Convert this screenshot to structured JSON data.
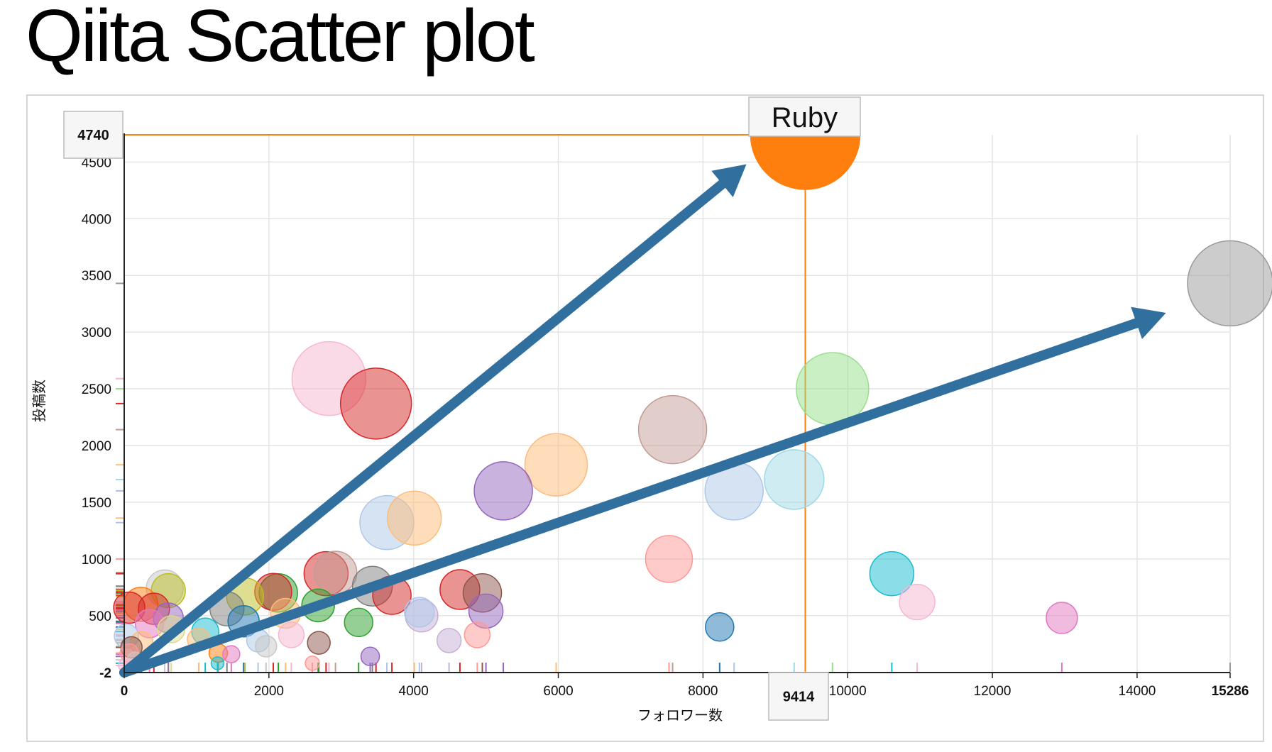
{
  "page_title": "Qiita Scatter plot",
  "chart_data": {
    "type": "scatter",
    "title": "Qiita Scatter plot",
    "xlabel": "フォロワー数",
    "ylabel": "投稿数",
    "xlim": [
      0,
      15286
    ],
    "ylim": [
      -2,
      4740
    ],
    "x_ticks": [
      "0",
      "2000",
      "4000",
      "6000",
      "8000",
      "10000",
      "12000",
      "14000",
      "15286"
    ],
    "y_ticks": [
      "-2",
      "500",
      "1000",
      "1500",
      "2000",
      "2500",
      "3000",
      "3500",
      "4000",
      "4500",
      "4740"
    ],
    "crosshair": {
      "x": 9414,
      "y": 4740,
      "x_label": "9414",
      "y_label": "4740"
    },
    "highlight_label": "Ruby",
    "grid": true,
    "points": [
      {
        "x": 9414,
        "y": 4740,
        "r": 77,
        "color": "#ff7f0e",
        "label": "Ruby"
      },
      {
        "x": 15286,
        "y": 3430,
        "r": 60,
        "color": "#999999"
      },
      {
        "x": 2830,
        "y": 2590,
        "r": 52,
        "color": "#f7b6d2"
      },
      {
        "x": 3480,
        "y": 2370,
        "r": 50,
        "color": "#d62728"
      },
      {
        "x": 9790,
        "y": 2500,
        "r": 51,
        "color": "#98df8a"
      },
      {
        "x": 7580,
        "y": 2140,
        "r": 48,
        "color": "#c49c94"
      },
      {
        "x": 5970,
        "y": 1830,
        "r": 44,
        "color": "#ffbb78"
      },
      {
        "x": 5240,
        "y": 1600,
        "r": 41,
        "color": "#9467bd"
      },
      {
        "x": 9260,
        "y": 1700,
        "r": 42,
        "color": "#9edae5"
      },
      {
        "x": 8430,
        "y": 1600,
        "r": 41,
        "color": "#aec7e8"
      },
      {
        "x": 3630,
        "y": 1320,
        "r": 38,
        "color": "#aec7e8"
      },
      {
        "x": 4010,
        "y": 1360,
        "r": 38,
        "color": "#ffbb78"
      },
      {
        "x": 7530,
        "y": 1000,
        "r": 33,
        "color": "#ff9896"
      },
      {
        "x": 10610,
        "y": 870,
        "r": 31,
        "color": "#17becf"
      },
      {
        "x": 10960,
        "y": 620,
        "r": 25,
        "color": "#f7b6d2"
      },
      {
        "x": 12960,
        "y": 480,
        "r": 22,
        "color": "#e377c2"
      },
      {
        "x": 8230,
        "y": 400,
        "r": 20,
        "color": "#1f77b4"
      },
      {
        "x": 2920,
        "y": 880,
        "r": 30,
        "color": "#c49c94"
      },
      {
        "x": 2790,
        "y": 870,
        "r": 31,
        "color": "#d62728"
      },
      {
        "x": 3430,
        "y": 760,
        "r": 28,
        "color": "#7f7f7f"
      },
      {
        "x": 3700,
        "y": 680,
        "r": 27,
        "color": "#d62728"
      },
      {
        "x": 4640,
        "y": 730,
        "r": 28,
        "color": "#d62728"
      },
      {
        "x": 4950,
        "y": 700,
        "r": 27,
        "color": "#8c564b"
      },
      {
        "x": 5000,
        "y": 540,
        "r": 24,
        "color": "#9467bd"
      },
      {
        "x": 4110,
        "y": 500,
        "r": 23,
        "color": "#c5b0d5"
      },
      {
        "x": 4080,
        "y": 530,
        "r": 21,
        "color": "#aec7e8"
      },
      {
        "x": 4490,
        "y": 280,
        "r": 17,
        "color": "#c5b0d5"
      },
      {
        "x": 4880,
        "y": 330,
        "r": 18,
        "color": "#ff9896"
      },
      {
        "x": 3240,
        "y": 440,
        "r": 20,
        "color": "#2ca02c"
      },
      {
        "x": 3400,
        "y": 140,
        "r": 13,
        "color": "#9467bd"
      },
      {
        "x": 2690,
        "y": 260,
        "r": 16,
        "color": "#8c564b"
      },
      {
        "x": 2600,
        "y": 80,
        "r": 10,
        "color": "#ff9896"
      },
      {
        "x": 2130,
        "y": 700,
        "r": 27,
        "color": "#2ca02c"
      },
      {
        "x": 2060,
        "y": 710,
        "r": 26,
        "color": "#d62728"
      },
      {
        "x": 2680,
        "y": 590,
        "r": 23,
        "color": "#2ca02c"
      },
      {
        "x": 2230,
        "y": 520,
        "r": 21,
        "color": "#ffbb78"
      },
      {
        "x": 2310,
        "y": 330,
        "r": 18,
        "color": "#f7b6d2"
      },
      {
        "x": 1960,
        "y": 230,
        "r": 15,
        "color": "#c7c7c7"
      },
      {
        "x": 1850,
        "y": 280,
        "r": 16,
        "color": "#aec7e8"
      },
      {
        "x": 1670,
        "y": 670,
        "r": 26,
        "color": "#bcbd22"
      },
      {
        "x": 1420,
        "y": 560,
        "r": 24,
        "color": "#7f7f7f"
      },
      {
        "x": 1650,
        "y": 450,
        "r": 22,
        "color": "#1f77b4"
      },
      {
        "x": 1120,
        "y": 360,
        "r": 19,
        "color": "#17becf"
      },
      {
        "x": 1030,
        "y": 290,
        "r": 16,
        "color": "#ffbb78"
      },
      {
        "x": 1300,
        "y": 170,
        "r": 13,
        "color": "#ff7f0e"
      },
      {
        "x": 1480,
        "y": 160,
        "r": 12,
        "color": "#e377c2"
      },
      {
        "x": 1290,
        "y": 80,
        "r": 9,
        "color": "#17becf"
      },
      {
        "x": 560,
        "y": 740,
        "r": 26,
        "color": "#c7c7c7"
      },
      {
        "x": 610,
        "y": 720,
        "r": 24,
        "color": "#bcbd22"
      },
      {
        "x": 230,
        "y": 600,
        "r": 24,
        "color": "#ff7f0e"
      },
      {
        "x": 70,
        "y": 570,
        "r": 22,
        "color": "#d62728"
      },
      {
        "x": 410,
        "y": 560,
        "r": 22,
        "color": "#d62728"
      },
      {
        "x": 610,
        "y": 480,
        "r": 21,
        "color": "#9467bd"
      },
      {
        "x": 350,
        "y": 430,
        "r": 20,
        "color": "#e377c2"
      },
      {
        "x": 650,
        "y": 380,
        "r": 19,
        "color": "#dbdb8d"
      },
      {
        "x": 30,
        "y": 320,
        "r": 17,
        "color": "#aec7e8"
      },
      {
        "x": 240,
        "y": 260,
        "r": 16,
        "color": "#ffbb78"
      },
      {
        "x": 100,
        "y": 220,
        "r": 15,
        "color": "#8c564b"
      },
      {
        "x": 70,
        "y": 170,
        "r": 13,
        "color": "#ff9896"
      },
      {
        "x": 150,
        "y": 110,
        "r": 11,
        "color": "#c7c7c7"
      },
      {
        "x": 10,
        "y": 60,
        "r": 9,
        "color": "#f7b6d2"
      }
    ],
    "arrows": [
      {
        "from": [
          0,
          -2
        ],
        "to": [
          8600,
          4480
        ],
        "color": "#31709e"
      },
      {
        "from": [
          0,
          -2
        ],
        "to": [
          14400,
          3170
        ],
        "color": "#31709e"
      }
    ]
  }
}
